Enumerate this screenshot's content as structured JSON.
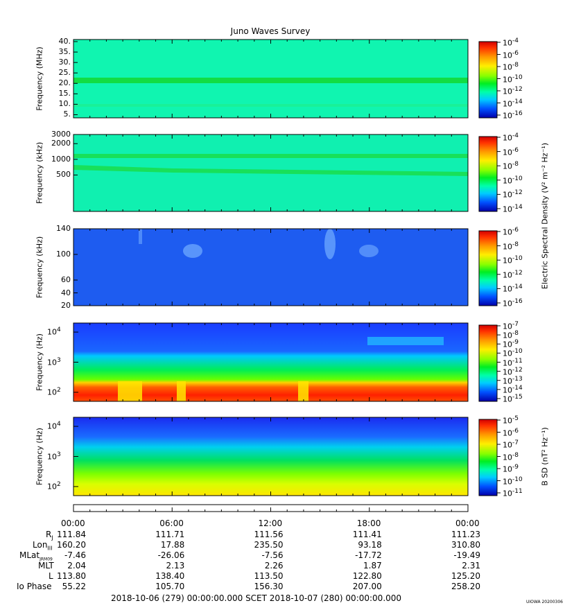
{
  "chart_data": {
    "type": "heatmap",
    "title": "Juno Waves Survey",
    "panels": [
      {
        "ylabel": "Frequency (MHz)",
        "y_scale": "linear",
        "ylim": [
          3.5,
          41
        ],
        "y_ticks": [
          "40.",
          "35.",
          "30.",
          "25.",
          "20.",
          "15.",
          "10.",
          "5."
        ],
        "colorbar_ticks": [
          "10-4",
          "10-6",
          "10-8",
          "10-10",
          "10-12",
          "10-14",
          "10-16"
        ],
        "colorbar_exponents": [
          "-4",
          "-6",
          "-8",
          "-10",
          "-12",
          "-14",
          "-16"
        ],
        "features": "uniform background near 1e-12 with a persistent band at ~21 MHz"
      },
      {
        "ylabel": "Frequency (kHz)",
        "y_scale": "log",
        "ylim": [
          100,
          3000
        ],
        "y_ticks": [
          "3000",
          "2000",
          "1000",
          "500"
        ],
        "colorbar_ticks": [
          "10-4",
          "10-6",
          "10-8",
          "10-10",
          "10-12",
          "10-14"
        ],
        "colorbar_exponents": [
          "-4",
          "-6",
          "-8",
          "-10",
          "-12",
          "-14"
        ],
        "features": "bands near ~700 kHz and ~1300 kHz"
      },
      {
        "ylabel": "Frequency (kHz)",
        "y_scale": "linear",
        "ylim": [
          20,
          140
        ],
        "y_ticks": [
          "140",
          "100",
          "60",
          "40",
          "20"
        ],
        "colorbar_ticks": [
          "10-6",
          "10-8",
          "10-10",
          "10-12",
          "10-14",
          "10-16"
        ],
        "colorbar_exponents": [
          "-6",
          "-8",
          "-10",
          "-12",
          "-14",
          "-16"
        ],
        "features": "low background with faint emissions near 06:30 and 15:00-17:00"
      },
      {
        "ylabel": "Frequency (Hz)",
        "y_scale": "log",
        "ylim": [
          50,
          20000
        ],
        "y_ticks": [
          "10^4",
          "10^3",
          "10^2"
        ],
        "colorbar_ticks": [
          "10-7",
          "10-8",
          "10-9",
          "10-10",
          "10-11",
          "10-12",
          "10-13",
          "10-14",
          "10-15"
        ],
        "colorbar_exponents": [
          "-7",
          "-8",
          "-9",
          "-10",
          "-11",
          "-12",
          "-13",
          "-14",
          "-15"
        ],
        "features": "intense emission below ~250 Hz, green band 300-2000 Hz"
      },
      {
        "ylabel": "Frequency (Hz)",
        "y_scale": "log",
        "ylim": [
          50,
          20000
        ],
        "y_ticks": [
          "10^4",
          "10^3",
          "10^2"
        ],
        "colorbar_ticks": [
          "10-5",
          "10-6",
          "10-7",
          "10-8",
          "10-9",
          "10-10",
          "10-11"
        ],
        "colorbar_exponents": [
          "-5",
          "-6",
          "-7",
          "-8",
          "-9",
          "-10",
          "-11"
        ],
        "features": "magnetic spectral density rising toward low frequency"
      }
    ],
    "colorbar_labels": [
      {
        "text": "Electric Spectral Density (V² m⁻² Hz⁻¹)"
      },
      {
        "text": "B SD (nT² Hz⁻¹)"
      }
    ],
    "x_ticks": [
      "00:00",
      "06:00",
      "12:00",
      "18:00",
      "00:00"
    ],
    "ephemeris": [
      {
        "label": "RJ",
        "values": [
          "111.84",
          "111.71",
          "111.56",
          "111.41",
          "111.23"
        ]
      },
      {
        "label": "LonIII",
        "values": [
          "160.20",
          "17.88",
          "235.50",
          "93.18",
          "310.80"
        ]
      },
      {
        "label": "MLatJRM09",
        "values": [
          "-7.46",
          "-26.06",
          "-7.56",
          "-17.72",
          "-19.49"
        ]
      },
      {
        "label": "MLT",
        "values": [
          "2.04",
          "2.13",
          "2.26",
          "1.87",
          "2.31"
        ]
      },
      {
        "label": "L",
        "values": [
          "113.80",
          "138.40",
          "113.50",
          "122.80",
          "125.20"
        ]
      },
      {
        "label": "Io Phase",
        "values": [
          "55.22",
          "105.70",
          "156.30",
          "207.00",
          "258.20"
        ]
      }
    ],
    "footer": "2018-10-06 (279) 00:00:00.000     SCET     2018-10-07 (280) 00:00:00.000",
    "credit": "UIOWA 20200306"
  }
}
